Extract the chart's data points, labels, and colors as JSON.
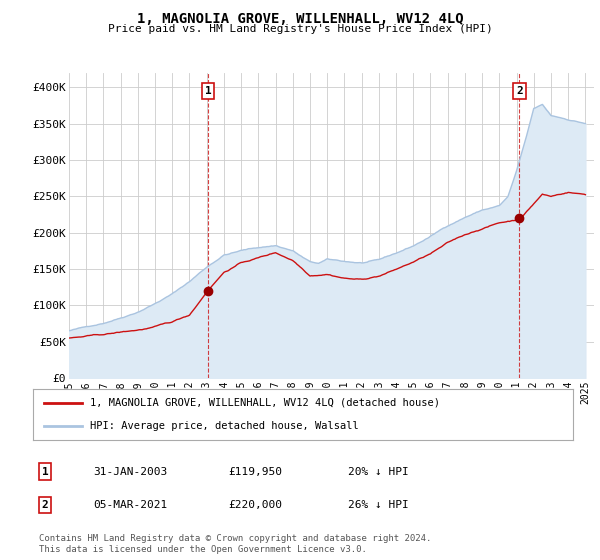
{
  "title": "1, MAGNOLIA GROVE, WILLENHALL, WV12 4LQ",
  "subtitle": "Price paid vs. HM Land Registry's House Price Index (HPI)",
  "ylabel_ticks": [
    "£0",
    "£50K",
    "£100K",
    "£150K",
    "£200K",
    "£250K",
    "£300K",
    "£350K",
    "£400K"
  ],
  "ytick_values": [
    0,
    50000,
    100000,
    150000,
    200000,
    250000,
    300000,
    350000,
    400000
  ],
  "ylim": [
    0,
    420000
  ],
  "xlim_start": 1995.0,
  "xlim_end": 2025.5,
  "hpi_color": "#aac4e0",
  "hpi_fill_color": "#ddeaf5",
  "price_color": "#cc1111",
  "marker_color": "#990000",
  "legend_label_red": "1, MAGNOLIA GROVE, WILLENHALL, WV12 4LQ (detached house)",
  "legend_label_blue": "HPI: Average price, detached house, Walsall",
  "annotation1_label": "1",
  "annotation1_date": "31-JAN-2003",
  "annotation1_price": "£119,950",
  "annotation1_hpi": "20% ↓ HPI",
  "annotation2_label": "2",
  "annotation2_date": "05-MAR-2021",
  "annotation2_price": "£220,000",
  "annotation2_hpi": "26% ↓ HPI",
  "footer_line1": "Contains HM Land Registry data © Crown copyright and database right 2024.",
  "footer_line2": "This data is licensed under the Open Government Licence v3.0.",
  "background_color": "#ffffff",
  "grid_color": "#cccccc",
  "sale1_x": 2003.08,
  "sale1_y": 119950,
  "sale2_x": 2021.17,
  "sale2_y": 220000,
  "xtick_years": [
    1995,
    1996,
    1997,
    1998,
    1999,
    2000,
    2001,
    2002,
    2003,
    2004,
    2005,
    2006,
    2007,
    2008,
    2009,
    2010,
    2011,
    2012,
    2013,
    2014,
    2015,
    2016,
    2017,
    2018,
    2019,
    2020,
    2021,
    2022,
    2023,
    2024,
    2025
  ]
}
